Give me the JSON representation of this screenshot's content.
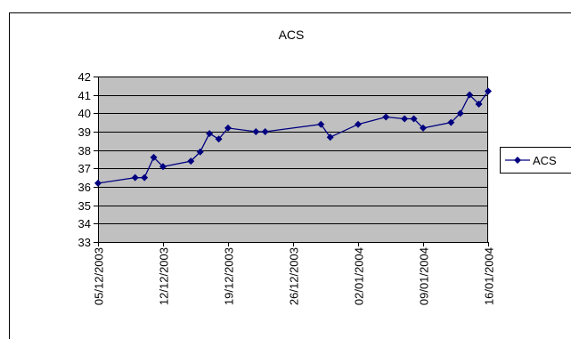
{
  "chart_data": {
    "type": "line",
    "title": "ACS",
    "xlabel": "",
    "ylabel": "",
    "ylim": [
      33,
      42
    ],
    "y_ticks": [
      33,
      34,
      35,
      36,
      37,
      38,
      39,
      40,
      41,
      42
    ],
    "x_ticks": [
      "05/12/2003",
      "12/12/2003",
      "19/12/2003",
      "26/12/2003",
      "02/01/2004",
      "09/01/2004",
      "16/01/2004"
    ],
    "xlim": [
      "05/12/2003",
      "16/01/2004"
    ],
    "grid": "horizontal",
    "legend_position": "right",
    "series": [
      {
        "name": "ACS",
        "color": "#000080",
        "marker": "diamond",
        "points": [
          {
            "x": "05/12/2003",
            "y": 36.2
          },
          {
            "x": "09/12/2003",
            "y": 36.5
          },
          {
            "x": "10/12/2003",
            "y": 36.5
          },
          {
            "x": "11/12/2003",
            "y": 37.6
          },
          {
            "x": "12/12/2003",
            "y": 37.1
          },
          {
            "x": "15/12/2003",
            "y": 37.4
          },
          {
            "x": "16/12/2003",
            "y": 37.9
          },
          {
            "x": "17/12/2003",
            "y": 38.9
          },
          {
            "x": "18/12/2003",
            "y": 38.6
          },
          {
            "x": "19/12/2003",
            "y": 39.2
          },
          {
            "x": "22/12/2003",
            "y": 39.0
          },
          {
            "x": "23/12/2003",
            "y": 39.0
          },
          {
            "x": "29/12/2003",
            "y": 39.4
          },
          {
            "x": "30/12/2003",
            "y": 38.7
          },
          {
            "x": "02/01/2004",
            "y": 39.4
          },
          {
            "x": "05/01/2004",
            "y": 39.8
          },
          {
            "x": "07/01/2004",
            "y": 39.7
          },
          {
            "x": "08/01/2004",
            "y": 39.7
          },
          {
            "x": "09/01/2004",
            "y": 39.2
          },
          {
            "x": "12/01/2004",
            "y": 39.5
          },
          {
            "x": "13/01/2004",
            "y": 40.0
          },
          {
            "x": "14/01/2004",
            "y": 41.0
          },
          {
            "x": "15/01/2004",
            "y": 40.5
          },
          {
            "x": "16/01/2004",
            "y": 41.2
          }
        ]
      }
    ],
    "colors": {
      "plot_background": "#c0c0c0",
      "gridline": "#000000",
      "frame": "#000000"
    }
  }
}
